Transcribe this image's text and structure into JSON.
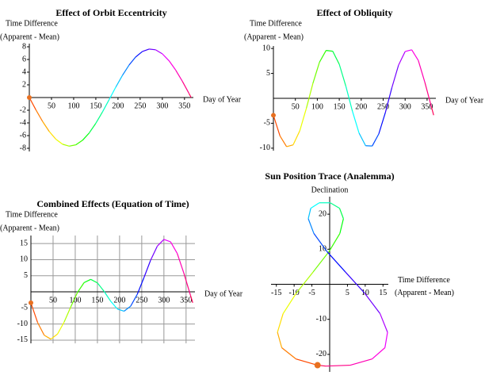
{
  "chart_data": [
    {
      "type": "line",
      "title": "Effect of Orbit Eccentricity",
      "ylabel": [
        "Time Difference",
        "(Apparent - Mean)"
      ],
      "xlabel": [
        "Day of Year"
      ],
      "x": [
        0,
        15,
        30,
        45,
        60,
        75,
        90,
        105,
        120,
        135,
        150,
        165,
        180,
        195,
        210,
        225,
        240,
        255,
        270,
        285,
        300,
        315,
        330,
        345,
        360,
        365
      ],
      "values": [
        0,
        -1.96,
        -3.78,
        -5.36,
        -6.58,
        -7.36,
        -7.66,
        -7.45,
        -6.74,
        -5.59,
        -4.06,
        -2.27,
        -0.33,
        1.64,
        3.49,
        5.12,
        6.4,
        7.26,
        7.64,
        7.52,
        6.89,
        5.81,
        4.34,
        2.59,
        0.66,
        0
      ],
      "xlim": [
        0,
        370
      ],
      "ylim": [
        -8.5,
        8.5
      ],
      "xticks": [
        50,
        100,
        150,
        200,
        250,
        300,
        350
      ],
      "yticks": [
        -8,
        -6,
        -4,
        -2,
        2,
        4,
        6,
        8
      ],
      "grid": false,
      "gradient": [
        "#ff3000",
        "#ffff00",
        "#00ff00",
        "#00ffff",
        "#0000ff",
        "#ff00ff",
        "#ff0040"
      ],
      "marker_color": "#e87020"
    },
    {
      "type": "line",
      "title": "Effect of Obliquity",
      "ylabel": [
        "Time Difference",
        "(Apparent - Mean)"
      ],
      "xlabel": [
        "Day of Year"
      ],
      "x": [
        0,
        15,
        30,
        45,
        60,
        75,
        90,
        105,
        120,
        135,
        150,
        165,
        180,
        195,
        210,
        225,
        240,
        255,
        270,
        285,
        300,
        315,
        330,
        345,
        360,
        365
      ],
      "values": [
        -3.41,
        -7.54,
        -9.7,
        -9.33,
        -6.53,
        -2.02,
        3.01,
        7.26,
        9.61,
        9.46,
        6.84,
        2.44,
        -2.6,
        -6.96,
        -9.51,
        -9.57,
        -7.14,
        -2.85,
        2.19,
        6.66,
        9.39,
        9.74,
        7.6,
        3.19,
        -1.77,
        -3.38
      ],
      "xlim": [
        0,
        370
      ],
      "ylim": [
        -10.5,
        10.5
      ],
      "xticks": [
        50,
        100,
        150,
        200,
        250,
        300,
        350
      ],
      "yticks": [
        -10,
        -5,
        5,
        10
      ],
      "grid": false,
      "gradient": [
        "#ff3000",
        "#ffff00",
        "#00ff00",
        "#00ffff",
        "#0000ff",
        "#ff00ff",
        "#ff0040"
      ],
      "marker_color": "#e87020"
    },
    {
      "type": "line",
      "title": "Combined Effects (Equation of Time)",
      "ylabel": [
        "Time Difference",
        "(Apparent - Mean)"
      ],
      "xlabel": [
        "Day of Year"
      ],
      "x": [
        0,
        15,
        30,
        45,
        60,
        75,
        90,
        105,
        120,
        135,
        150,
        165,
        180,
        195,
        210,
        225,
        240,
        255,
        270,
        285,
        300,
        315,
        330,
        345,
        360,
        365
      ],
      "values": [
        -3.41,
        -9.5,
        -13.48,
        -14.69,
        -13.11,
        -9.38,
        -4.65,
        -0.19,
        2.87,
        3.87,
        2.78,
        0.17,
        -2.93,
        -5.32,
        -6.02,
        -4.45,
        -0.74,
        4.41,
        9.83,
        14.18,
        16.28,
        15.55,
        11.94,
        5.78,
        -1.11,
        -3.38
      ],
      "xlim": [
        0,
        370
      ],
      "ylim": [
        -16,
        17.5
      ],
      "xticks": [
        50,
        100,
        150,
        200,
        250,
        300,
        350
      ],
      "yticks": [
        -15,
        -10,
        -5,
        5,
        10,
        15
      ],
      "grid": true,
      "gradient": [
        "#ff3000",
        "#ffff00",
        "#00ff00",
        "#00ffff",
        "#0000ff",
        "#ff00ff",
        "#ff0040"
      ],
      "marker_color": "#e87020"
    },
    {
      "type": "line",
      "title": "Sun Position Trace (Analemma)",
      "ylabel": [
        "Declination"
      ],
      "xlabel": [
        "Time Difference",
        "(Apparent - Mean)"
      ],
      "x": [
        -3.41,
        -9.5,
        -13.48,
        -14.69,
        -13.11,
        -9.38,
        -4.65,
        -0.19,
        2.87,
        3.87,
        2.78,
        0.17,
        -2.93,
        -5.32,
        -6.02,
        -4.45,
        -0.74,
        4.41,
        9.83,
        14.18,
        16.28,
        15.55,
        11.94,
        5.78,
        -1.11,
        -3.38
      ],
      "values": [
        -23.09,
        -21.3,
        -18.1,
        -13.69,
        -8.38,
        -2.51,
        3.52,
        9.32,
        14.5,
        18.72,
        21.7,
        23.25,
        23.25,
        21.7,
        18.72,
        14.5,
        9.32,
        3.52,
        -2.51,
        -8.38,
        -13.69,
        -18.1,
        -21.3,
        -23.09,
        -23.35,
        -23.09
      ],
      "xlim": [
        -16.5,
        16.5
      ],
      "ylim": [
        -25,
        25
      ],
      "xticks": [
        -15,
        -10,
        -5,
        5,
        10,
        15
      ],
      "yticks": [
        -20,
        -10,
        10,
        20
      ],
      "grid": false,
      "gradient": [
        "#ff3000",
        "#ffff00",
        "#00ff00",
        "#00ffff",
        "#0000ff",
        "#ff00ff",
        "#ff0040"
      ],
      "marker_color": "#e87020"
    }
  ]
}
